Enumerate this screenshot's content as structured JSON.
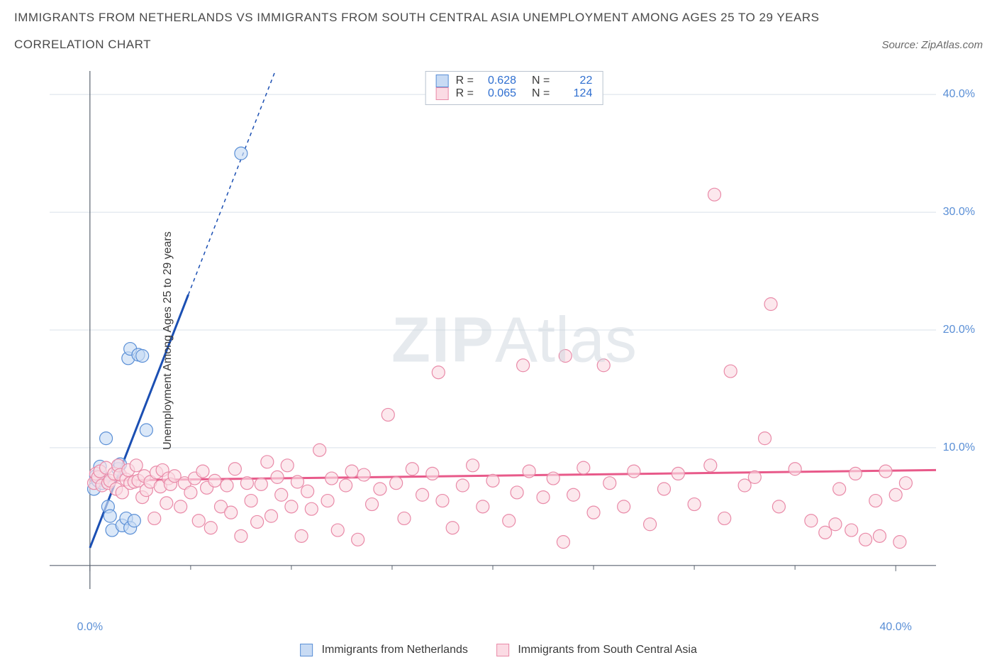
{
  "title_line1": "IMMIGRANTS FROM NETHERLANDS VS IMMIGRANTS FROM SOUTH CENTRAL ASIA UNEMPLOYMENT AMONG AGES 25 TO 29 YEARS",
  "title_line2": "CORRELATION CHART",
  "source_label": "Source: ZipAtlas.com",
  "y_axis_label": "Unemployment Among Ages 25 to 29 years",
  "watermark_bold": "ZIP",
  "watermark_light": "Atlas",
  "chart": {
    "type": "scatter",
    "background_color": "#ffffff",
    "grid_color": "#d9e0e9",
    "axis_color": "#5b6470",
    "x_range": [
      -2,
      42
    ],
    "y_range": [
      -2,
      42
    ],
    "y_ticks": [
      10,
      20,
      30,
      40
    ],
    "y_tick_labels": [
      "10.0%",
      "20.0%",
      "30.0%",
      "40.0%"
    ],
    "x_ticks_major": [
      0,
      40
    ],
    "x_tick_labels": [
      "0.0%",
      "40.0%"
    ],
    "x_ticks_minor": [
      5,
      10,
      15,
      20,
      25,
      30,
      35
    ],
    "y_tick_label_color": "#5a8fd6",
    "x_tick_label_color": "#5a8fd6",
    "series": [
      {
        "name": "Immigrants from Netherlands",
        "marker_fill": "#c8dbf4",
        "marker_stroke": "#5a8fd6",
        "marker_radius": 9,
        "marker_opacity": 0.65,
        "line_color": "#1b4fb3",
        "line_width": 3,
        "r_value": "0.628",
        "n_value": "22",
        "trend": {
          "x1": 0,
          "y1": 1.5,
          "x2": 9.2,
          "y2": 42,
          "extend_dashed": true
        },
        "points": [
          [
            0.2,
            6.5
          ],
          [
            0.3,
            7.6
          ],
          [
            0.4,
            7.2
          ],
          [
            0.5,
            8.4
          ],
          [
            0.6,
            7.0
          ],
          [
            0.7,
            7.4
          ],
          [
            0.9,
            5.0
          ],
          [
            1.0,
            4.2
          ],
          [
            1.1,
            3.0
          ],
          [
            1.4,
            8.2
          ],
          [
            1.5,
            8.6
          ],
          [
            1.9,
            17.6
          ],
          [
            2.0,
            18.4
          ],
          [
            2.4,
            17.9
          ],
          [
            2.6,
            17.8
          ],
          [
            2.8,
            11.5
          ],
          [
            1.6,
            3.4
          ],
          [
            1.8,
            4.0
          ],
          [
            2.0,
            3.2
          ],
          [
            2.2,
            3.8
          ],
          [
            0.8,
            10.8
          ],
          [
            7.5,
            35.0
          ]
        ]
      },
      {
        "name": "Immigrants from South Central Asia",
        "marker_fill": "#fbdbe4",
        "marker_stroke": "#e98aa8",
        "marker_radius": 9,
        "marker_opacity": 0.65,
        "line_color": "#e85a8a",
        "line_width": 3,
        "r_value": "0.065",
        "n_value": "124",
        "trend": {
          "x1": 0,
          "y1": 7.2,
          "x2": 42,
          "y2": 8.1,
          "extend_dashed": false
        },
        "points": [
          [
            0.2,
            7.0
          ],
          [
            0.3,
            7.8
          ],
          [
            0.4,
            7.5
          ],
          [
            0.5,
            8.0
          ],
          [
            0.6,
            6.8
          ],
          [
            0.8,
            8.3
          ],
          [
            0.9,
            7.0
          ],
          [
            1.0,
            7.2
          ],
          [
            1.2,
            7.8
          ],
          [
            1.3,
            6.5
          ],
          [
            1.4,
            8.5
          ],
          [
            1.5,
            7.7
          ],
          [
            1.6,
            6.2
          ],
          [
            1.8,
            7.3
          ],
          [
            1.9,
            8.1
          ],
          [
            2.0,
            7.0
          ],
          [
            2.2,
            7.1
          ],
          [
            2.3,
            8.5
          ],
          [
            2.4,
            7.2
          ],
          [
            2.6,
            5.8
          ],
          [
            2.7,
            7.6
          ],
          [
            2.8,
            6.4
          ],
          [
            3.0,
            7.1
          ],
          [
            3.2,
            4.0
          ],
          [
            3.3,
            7.9
          ],
          [
            3.5,
            6.7
          ],
          [
            3.6,
            8.1
          ],
          [
            3.8,
            5.3
          ],
          [
            3.9,
            7.4
          ],
          [
            4.0,
            6.9
          ],
          [
            4.2,
            7.6
          ],
          [
            4.5,
            5.0
          ],
          [
            4.7,
            7.0
          ],
          [
            5.0,
            6.2
          ],
          [
            5.2,
            7.4
          ],
          [
            5.4,
            3.8
          ],
          [
            5.6,
            8.0
          ],
          [
            5.8,
            6.6
          ],
          [
            6.0,
            3.2
          ],
          [
            6.2,
            7.2
          ],
          [
            6.5,
            5.0
          ],
          [
            6.8,
            6.8
          ],
          [
            7.0,
            4.5
          ],
          [
            7.2,
            8.2
          ],
          [
            7.5,
            2.5
          ],
          [
            7.8,
            7.0
          ],
          [
            8.0,
            5.5
          ],
          [
            8.3,
            3.7
          ],
          [
            8.5,
            6.9
          ],
          [
            8.8,
            8.8
          ],
          [
            9.0,
            4.2
          ],
          [
            9.3,
            7.5
          ],
          [
            9.5,
            6.0
          ],
          [
            9.8,
            8.5
          ],
          [
            10.0,
            5.0
          ],
          [
            10.3,
            7.1
          ],
          [
            10.5,
            2.5
          ],
          [
            10.8,
            6.3
          ],
          [
            11.0,
            4.8
          ],
          [
            11.4,
            9.8
          ],
          [
            11.8,
            5.5
          ],
          [
            12.0,
            7.4
          ],
          [
            12.3,
            3.0
          ],
          [
            12.7,
            6.8
          ],
          [
            13.0,
            8.0
          ],
          [
            13.3,
            2.2
          ],
          [
            13.6,
            7.7
          ],
          [
            14.0,
            5.2
          ],
          [
            14.4,
            6.5
          ],
          [
            14.8,
            12.8
          ],
          [
            15.2,
            7.0
          ],
          [
            15.6,
            4.0
          ],
          [
            16.0,
            8.2
          ],
          [
            16.5,
            6.0
          ],
          [
            17.0,
            7.8
          ],
          [
            17.5,
            5.5
          ],
          [
            17.3,
            16.4
          ],
          [
            18.0,
            3.2
          ],
          [
            18.5,
            6.8
          ],
          [
            19.0,
            8.5
          ],
          [
            19.5,
            5.0
          ],
          [
            20.0,
            7.2
          ],
          [
            20.8,
            3.8
          ],
          [
            21.2,
            6.2
          ],
          [
            21.5,
            17.0
          ],
          [
            21.8,
            8.0
          ],
          [
            22.5,
            5.8
          ],
          [
            23.0,
            7.4
          ],
          [
            23.5,
            2.0
          ],
          [
            23.6,
            17.8
          ],
          [
            24.0,
            6.0
          ],
          [
            24.5,
            8.3
          ],
          [
            25.0,
            4.5
          ],
          [
            25.5,
            17.0
          ],
          [
            25.8,
            7.0
          ],
          [
            26.5,
            5.0
          ],
          [
            27.0,
            8.0
          ],
          [
            27.8,
            3.5
          ],
          [
            28.5,
            6.5
          ],
          [
            29.2,
            7.8
          ],
          [
            30.0,
            5.2
          ],
          [
            30.8,
            8.5
          ],
          [
            31.0,
            31.5
          ],
          [
            31.5,
            4.0
          ],
          [
            31.8,
            16.5
          ],
          [
            32.5,
            6.8
          ],
          [
            33.0,
            7.5
          ],
          [
            33.5,
            10.8
          ],
          [
            33.8,
            22.2
          ],
          [
            34.2,
            5.0
          ],
          [
            35.0,
            8.2
          ],
          [
            35.8,
            3.8
          ],
          [
            36.5,
            2.8
          ],
          [
            37.0,
            3.5
          ],
          [
            37.2,
            6.5
          ],
          [
            37.8,
            3.0
          ],
          [
            38.0,
            7.8
          ],
          [
            38.5,
            2.2
          ],
          [
            39.0,
            5.5
          ],
          [
            39.2,
            2.5
          ],
          [
            39.5,
            8.0
          ],
          [
            40.0,
            6.0
          ],
          [
            40.2,
            2.0
          ],
          [
            40.5,
            7.0
          ]
        ]
      }
    ]
  },
  "legend_top": {
    "r_label": "R =",
    "n_label": "N ="
  },
  "legend_bottom": {
    "item1": "Immigrants from Netherlands",
    "item2": "Immigrants from South Central Asia"
  }
}
